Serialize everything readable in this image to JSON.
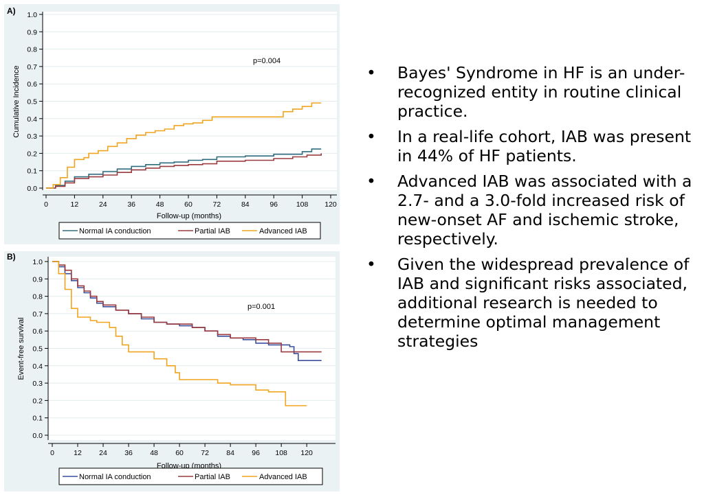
{
  "bullets": [
    "Bayes' Syndrome in HF is an under-recognized entity in routine clinical practice.",
    "In a real-life cohort, IAB was present in 44% of HF patients.",
    "Advanced IAB was associated with a 2.7- and a 3.0-fold increased risk of new-onset AF and ischemic stroke, respectively.",
    "Given the widespread prevalence of IAB and significant risks associated, additional research is needed to determine optimal management strategies"
  ],
  "bullet_symbol": "•",
  "colors": {
    "normal": "#2e6b7c",
    "partial": "#9b3a3e",
    "advanced": "#f0a31d",
    "normal_b": "#3a4f9c"
  },
  "chart_data": [
    {
      "type": "line",
      "panel_label": "A)",
      "title": "",
      "xlabel": "Follow-up (months)",
      "ylabel": "Cumulative Incidence",
      "xlim": [
        0,
        120
      ],
      "ylim": [
        0,
        1
      ],
      "xticks": [
        0,
        12,
        24,
        36,
        48,
        60,
        72,
        84,
        96,
        108,
        120
      ],
      "yticks": [
        "0.0",
        "0.1",
        "0.2",
        "0.3",
        "0.4",
        "0.5",
        "0.6",
        "0.7",
        "0.8",
        "0.9",
        "1.0"
      ],
      "annotation": "p=0.004",
      "legend": [
        "Normal IA conduction",
        "Partial IAB",
        "Advanced IAB"
      ],
      "series": [
        {
          "name": "Normal IA conduction",
          "color_key": "normal",
          "points": [
            [
              0,
              0
            ],
            [
              4,
              0.015
            ],
            [
              8,
              0.04
            ],
            [
              12,
              0.065
            ],
            [
              18,
              0.08
            ],
            [
              24,
              0.095
            ],
            [
              30,
              0.11
            ],
            [
              36,
              0.125
            ],
            [
              42,
              0.135
            ],
            [
              48,
              0.145
            ],
            [
              54,
              0.15
            ],
            [
              60,
              0.16
            ],
            [
              66,
              0.165
            ],
            [
              72,
              0.18
            ],
            [
              84,
              0.185
            ],
            [
              96,
              0.195
            ],
            [
              108,
              0.21
            ],
            [
              112,
              0.225
            ],
            [
              116,
              0.225
            ]
          ]
        },
        {
          "name": "Partial IAB",
          "color_key": "partial",
          "points": [
            [
              0,
              0
            ],
            [
              4,
              0.01
            ],
            [
              8,
              0.03
            ],
            [
              12,
              0.055
            ],
            [
              18,
              0.065
            ],
            [
              24,
              0.075
            ],
            [
              30,
              0.09
            ],
            [
              36,
              0.105
            ],
            [
              42,
              0.115
            ],
            [
              48,
              0.125
            ],
            [
              54,
              0.13
            ],
            [
              60,
              0.135
            ],
            [
              66,
              0.14
            ],
            [
              72,
              0.155
            ],
            [
              84,
              0.16
            ],
            [
              96,
              0.17
            ],
            [
              104,
              0.18
            ],
            [
              110,
              0.19
            ],
            [
              116,
              0.2
            ]
          ]
        },
        {
          "name": "Advanced IAB",
          "color_key": "advanced",
          "points": [
            [
              0,
              0
            ],
            [
              3,
              0.02
            ],
            [
              6,
              0.06
            ],
            [
              9,
              0.12
            ],
            [
              12,
              0.165
            ],
            [
              16,
              0.175
            ],
            [
              18,
              0.2
            ],
            [
              22,
              0.215
            ],
            [
              26,
              0.24
            ],
            [
              30,
              0.26
            ],
            [
              34,
              0.285
            ],
            [
              38,
              0.305
            ],
            [
              42,
              0.32
            ],
            [
              46,
              0.33
            ],
            [
              50,
              0.34
            ],
            [
              54,
              0.36
            ],
            [
              58,
              0.37
            ],
            [
              62,
              0.375
            ],
            [
              66,
              0.39
            ],
            [
              70,
              0.41
            ],
            [
              80,
              0.41
            ],
            [
              96,
              0.41
            ],
            [
              100,
              0.44
            ],
            [
              104,
              0.455
            ],
            [
              108,
              0.47
            ],
            [
              112,
              0.49
            ],
            [
              116,
              0.49
            ]
          ]
        }
      ]
    },
    {
      "type": "line",
      "panel_label": "B)",
      "title": "",
      "xlabel": "Follow-up (months)",
      "ylabel": "Event-free survival",
      "xlim": [
        0,
        130
      ],
      "ylim": [
        0,
        1
      ],
      "xticks": [
        0,
        12,
        24,
        36,
        48,
        60,
        72,
        84,
        96,
        108,
        120
      ],
      "yticks": [
        "0.0",
        "0.1",
        "0.2",
        "0.3",
        "0.4",
        "0.5",
        "0.6",
        "0.7",
        "0.8",
        "0.9",
        "1.0"
      ],
      "annotation": "p=0.001",
      "legend": [
        "Normal IA conduction",
        "Partial IAB",
        "Advanced IAB"
      ],
      "series": [
        {
          "name": "Normal IA conduction",
          "color_key": "normal_b",
          "points": [
            [
              0,
              1
            ],
            [
              3,
              0.97
            ],
            [
              6,
              0.93
            ],
            [
              9,
              0.89
            ],
            [
              12,
              0.85
            ],
            [
              15,
              0.82
            ],
            [
              18,
              0.79
            ],
            [
              21,
              0.76
            ],
            [
              24,
              0.74
            ],
            [
              30,
              0.72
            ],
            [
              36,
              0.7
            ],
            [
              42,
              0.67
            ],
            [
              48,
              0.65
            ],
            [
              54,
              0.64
            ],
            [
              60,
              0.63
            ],
            [
              66,
              0.62
            ],
            [
              72,
              0.6
            ],
            [
              78,
              0.57
            ],
            [
              84,
              0.56
            ],
            [
              90,
              0.55
            ],
            [
              96,
              0.53
            ],
            [
              102,
              0.52
            ],
            [
              108,
              0.52
            ],
            [
              112,
              0.51
            ],
            [
              114,
              0.47
            ],
            [
              116,
              0.43
            ],
            [
              127,
              0.43
            ]
          ]
        },
        {
          "name": "Partial IAB",
          "color_key": "partial",
          "points": [
            [
              0,
              1
            ],
            [
              3,
              0.98
            ],
            [
              6,
              0.95
            ],
            [
              9,
              0.9
            ],
            [
              12,
              0.86
            ],
            [
              15,
              0.83
            ],
            [
              18,
              0.8
            ],
            [
              21,
              0.77
            ],
            [
              24,
              0.75
            ],
            [
              30,
              0.72
            ],
            [
              36,
              0.7
            ],
            [
              42,
              0.68
            ],
            [
              48,
              0.65
            ],
            [
              54,
              0.64
            ],
            [
              60,
              0.64
            ],
            [
              66,
              0.62
            ],
            [
              72,
              0.6
            ],
            [
              78,
              0.58
            ],
            [
              84,
              0.56
            ],
            [
              90,
              0.56
            ],
            [
              96,
              0.55
            ],
            [
              102,
              0.53
            ],
            [
              108,
              0.48
            ],
            [
              127,
              0.48
            ]
          ]
        },
        {
          "name": "Advanced IAB",
          "color_key": "advanced",
          "points": [
            [
              0,
              1
            ],
            [
              3,
              0.93
            ],
            [
              6,
              0.84
            ],
            [
              9,
              0.73
            ],
            [
              12,
              0.68
            ],
            [
              18,
              0.66
            ],
            [
              21,
              0.65
            ],
            [
              24,
              0.65
            ],
            [
              27,
              0.62
            ],
            [
              30,
              0.57
            ],
            [
              33,
              0.52
            ],
            [
              36,
              0.48
            ],
            [
              42,
              0.48
            ],
            [
              48,
              0.44
            ],
            [
              54,
              0.4
            ],
            [
              58,
              0.36
            ],
            [
              60,
              0.32
            ],
            [
              72,
              0.32
            ],
            [
              78,
              0.3
            ],
            [
              84,
              0.29
            ],
            [
              96,
              0.26
            ],
            [
              102,
              0.25
            ],
            [
              108,
              0.25
            ],
            [
              110,
              0.17
            ],
            [
              120,
              0.17
            ]
          ]
        }
      ]
    }
  ]
}
